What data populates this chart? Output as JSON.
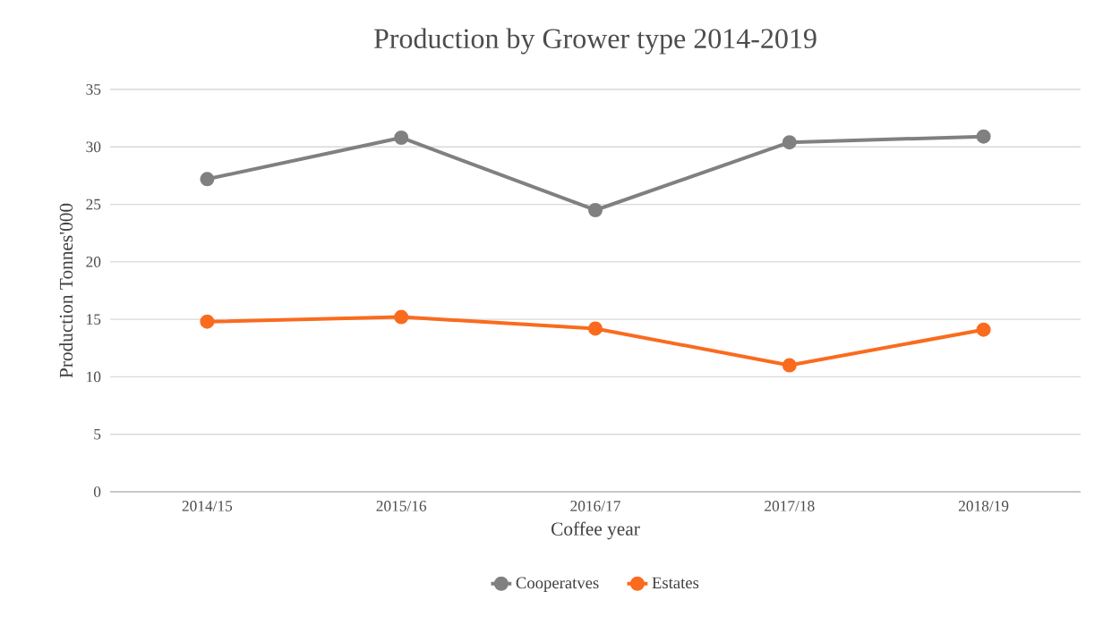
{
  "chart_data": {
    "type": "line",
    "title": "Production  by Grower type 2014-2019",
    "xlabel": "Coffee year",
    "ylabel": "Production Tonnes'000",
    "categories": [
      "2014/15",
      "2015/16",
      "2016/17",
      "2017/18",
      "2018/19"
    ],
    "series": [
      {
        "name": "Cooperatves",
        "color": "#808080",
        "values": [
          27.2,
          30.8,
          24.5,
          30.4,
          30.9
        ]
      },
      {
        "name": "Estates",
        "color": "#fa6b1e",
        "values": [
          14.8,
          15.2,
          14.2,
          11.0,
          14.1
        ]
      }
    ],
    "ylim": [
      0,
      35
    ],
    "yticks": [
      0,
      5,
      10,
      15,
      20,
      25,
      30,
      35
    ],
    "grid": "y",
    "legend": "bottom",
    "marker": "circle",
    "line_style": "solid"
  }
}
